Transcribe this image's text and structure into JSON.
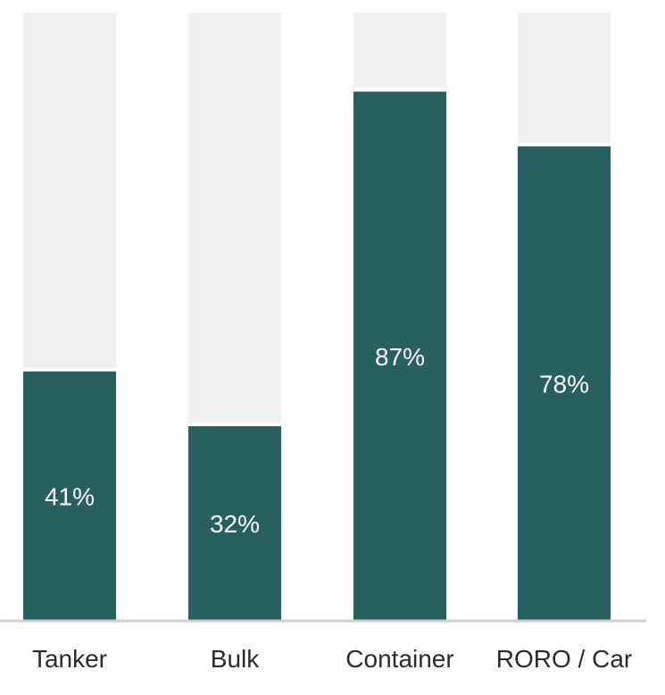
{
  "chart_data": {
    "type": "bar",
    "stacked_to_total": true,
    "categories": [
      "Tanker",
      "Bulk",
      "Container",
      "RORO / Car"
    ],
    "values": [
      41,
      32,
      87,
      78
    ],
    "value_labels": [
      "41%",
      "32%",
      "87%",
      "78%"
    ],
    "ylim": [
      0,
      100
    ],
    "grid": false,
    "colors": {
      "bar": "#27605F",
      "background_bar": "#F1F1F1",
      "value_label": "#FFFFFF",
      "baseline": "#CFCFCF",
      "tick_label": "#2B2B2B"
    }
  }
}
